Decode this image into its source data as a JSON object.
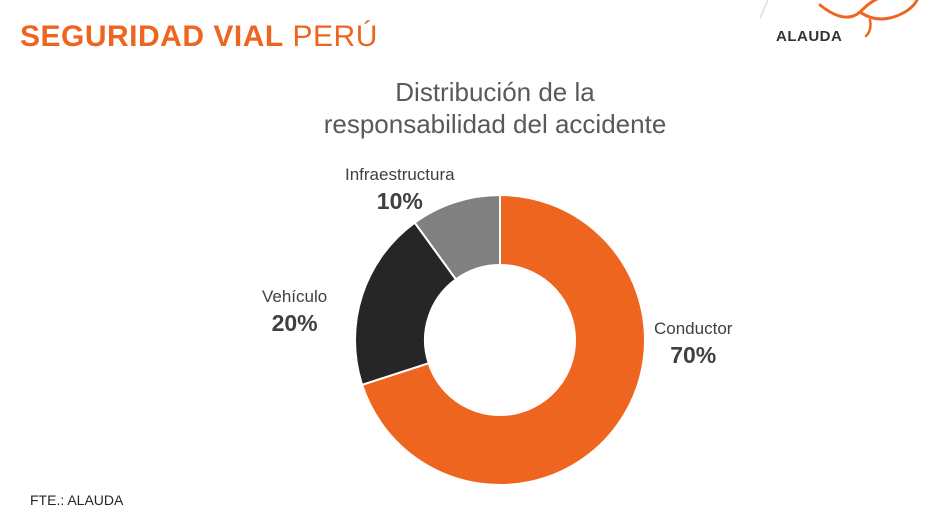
{
  "header": {
    "title_bold": "SEGURIDAD VIAL",
    "title_light": "PERÚ",
    "accent_color": "#ee6520"
  },
  "logo": {
    "text": "ALAUDA",
    "icon": "bird-logo-icon"
  },
  "source": "FTE.: ALAUDA",
  "chart_data": {
    "type": "pie",
    "variant": "donut",
    "title_lines": [
      "Distribución de la",
      "responsabilidad del accidente"
    ],
    "slices": [
      {
        "label": "Conductor",
        "value": 70,
        "display": "70%",
        "color": "#ee6520"
      },
      {
        "label": "Vehículo",
        "value": 20,
        "display": "20%",
        "color": "#262626"
      },
      {
        "label": "Infraestructura",
        "value": 10,
        "display": "10%",
        "color": "#808080"
      }
    ],
    "legend": "none",
    "data_labels": "outside"
  }
}
